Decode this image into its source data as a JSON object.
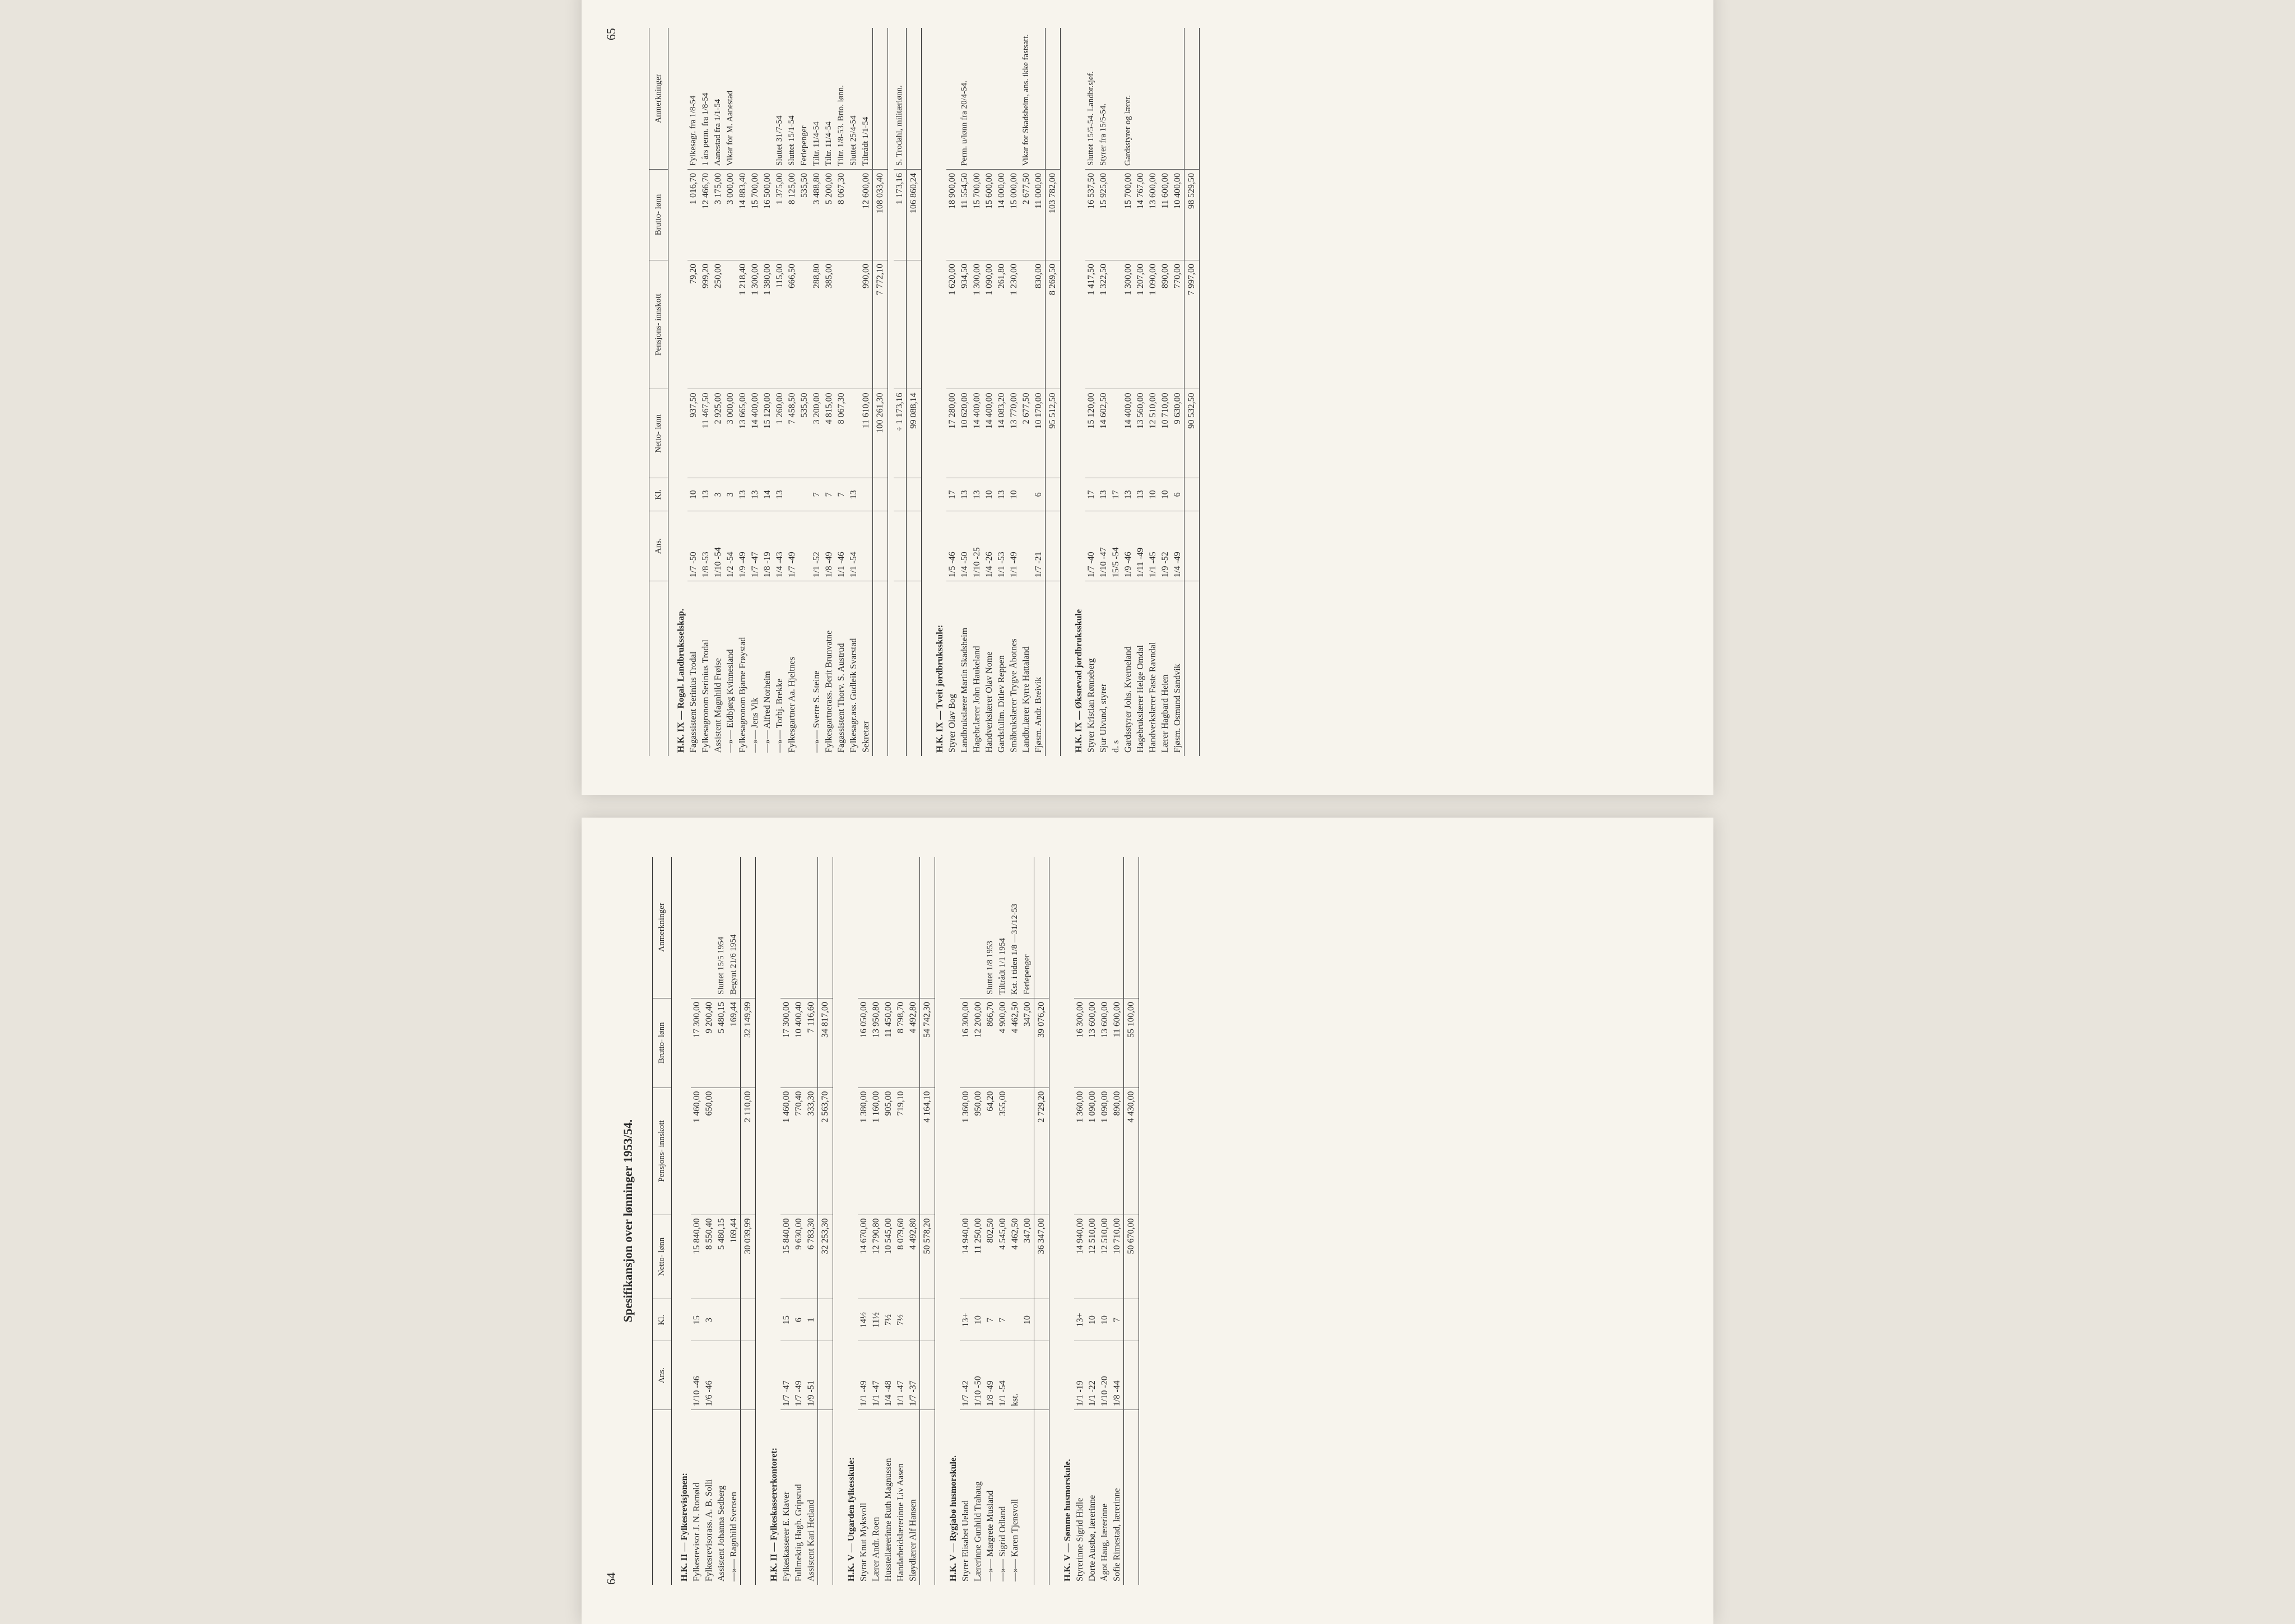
{
  "doc_title": "Spesifikansjon over lønninger 1953/54.",
  "page_left_num": "64",
  "page_right_num": "65",
  "headers": {
    "ans": "Ans.",
    "kl": "Kl.",
    "netto": "Netto-\nlønn",
    "pensjon": "Pensjons-\ninnskott",
    "brutto": "Brutto-\nlønn",
    "anm": "Anmerkninger"
  },
  "left": [
    {
      "type": "section",
      "name": "H.K. II — Fylkesrevisjonen:"
    },
    {
      "name": "Fylkesrevisor J. N. Romøld",
      "ans": "1/10 -46",
      "kl": "15",
      "netto": "15 840,00",
      "pensjon": "1 460,00",
      "brutto": "17 300,00",
      "note": ""
    },
    {
      "name": "Fylkesrevisorass. A. B. Solli",
      "ans": "1/6  -46",
      "kl": "3",
      "netto": "8 550,40",
      "pensjon": "650,00",
      "brutto": "9 200,40",
      "note": ""
    },
    {
      "name": "Assistent Johanna Sedberg",
      "ans": "",
      "kl": "",
      "netto": "5 480,15",
      "pensjon": "",
      "brutto": "5 480,15",
      "note": "Sluttet 15/5 1954"
    },
    {
      "name": "   —»—    Ragnhild Svensen",
      "ans": "",
      "kl": "",
      "netto": "169,44",
      "pensjon": "",
      "brutto": "169,44",
      "note": "Begynt 21/6 1954"
    },
    {
      "type": "total",
      "netto": "30 039,99",
      "pensjon": "2 110,00",
      "brutto": "32 149,99"
    },
    {
      "type": "section",
      "name": "H.K. II — Fylkeskassererkontoret:"
    },
    {
      "name": "Fylkeskasserer E. Klaver",
      "ans": "1/7  -47",
      "kl": "15",
      "netto": "15 840,00",
      "pensjon": "1 460,00",
      "brutto": "17 300,00",
      "note": ""
    },
    {
      "name": "Fullmektig Hagb. Gripsrud",
      "ans": "1/7  -49",
      "kl": "6",
      "netto": "9 630,00",
      "pensjon": "770,40",
      "brutto": "10 400,40",
      "note": ""
    },
    {
      "name": "Assistent Kari Hetland",
      "ans": "1/9  -51",
      "kl": "1",
      "netto": "6 783,30",
      "pensjon": "333,30",
      "brutto": "7 116,60",
      "note": ""
    },
    {
      "type": "total",
      "netto": "32 253,30",
      "pensjon": "2 563,70",
      "brutto": "34 817,00"
    },
    {
      "type": "section",
      "name": "H.K. V — Utgarden fylkesskule:"
    },
    {
      "name": "Styrar Knut Myksvoll",
      "ans": "1/1  -49",
      "kl": "14½",
      "netto": "14 670,00",
      "pensjon": "1 380,00",
      "brutto": "16 050,00",
      "note": ""
    },
    {
      "name": "Lærer Andr. Roen",
      "ans": "1/1  -47",
      "kl": "11½",
      "netto": "12 790,80",
      "pensjon": "1 160,00",
      "brutto": "13 950,80",
      "note": ""
    },
    {
      "name": "Husstellærerinne Ruth Magnussen",
      "ans": "1/4  -48",
      "kl": "7½",
      "netto": "10 545,00",
      "pensjon": "905,00",
      "brutto": "11 450,00",
      "note": ""
    },
    {
      "name": "Handarbeidslærerinne Liv Aasen",
      "ans": "1/1  -47",
      "kl": "7½",
      "netto": "8 079,60",
      "pensjon": "719,10",
      "brutto": "8 798,70",
      "note": ""
    },
    {
      "name": "Sløydlærer Alf Hansen",
      "ans": "1/7  -37",
      "kl": "",
      "netto": "4 492,80",
      "pensjon": "",
      "brutto": "4 492,80",
      "note": ""
    },
    {
      "type": "total",
      "netto": "50 578,20",
      "pensjon": "4 164,10",
      "brutto": "54 742,30"
    },
    {
      "type": "section",
      "name": "H.K. V — Rygjabø husmorskule."
    },
    {
      "name": "Styrer Elisabet Ueland",
      "ans": "1/7  -42",
      "kl": "13+",
      "netto": "14 940,00",
      "pensjon": "1 360,00",
      "brutto": "16 300,00",
      "note": ""
    },
    {
      "name": "Lærerinne Gunhild Trahaug",
      "ans": "1/10 -50",
      "kl": "10",
      "netto": "11 250,00",
      "pensjon": "950,00",
      "brutto": "12 200,00",
      "note": ""
    },
    {
      "name": "   —»—    Margrete Musland",
      "ans": "1/8  -49",
      "kl": "7",
      "netto": "802,50",
      "pensjon": "64,20",
      "brutto": "866,70",
      "note": "Sluttet 1/8 1953"
    },
    {
      "name": "   —»—    Sigrid Odland",
      "ans": "1/1  -54",
      "kl": "7",
      "netto": "4 545,00",
      "pensjon": "355,00",
      "brutto": "4 900,00",
      "note": "Tiltrådt 1/1 1954"
    },
    {
      "name": "   —»—    Karen Tjensvoll",
      "ans": "kst.",
      "kl": "",
      "netto": "4 462,50",
      "pensjon": "",
      "brutto": "4 462,50",
      "note": "Kst. i tiden 1/8 —31/12-53"
    },
    {
      "name": "",
      "ans": "",
      "kl": "10",
      "netto": "347,00",
      "pensjon": "",
      "brutto": "347,00",
      "note": "Feriepenger"
    },
    {
      "type": "total",
      "netto": "36 347,00",
      "pensjon": "2 729,20",
      "brutto": "39 076,20"
    },
    {
      "type": "section",
      "name": "H.K. V — Sømme husmorskule."
    },
    {
      "name": "Styrerinne Sigrid Hidle",
      "ans": "1/1  -19",
      "kl": "13+",
      "netto": "14 940,00",
      "pensjon": "1 360,00",
      "brutto": "16 300,00",
      "note": ""
    },
    {
      "name": "Dorte Austbø, lærerinne",
      "ans": "1/1  -22",
      "kl": "10",
      "netto": "12 510,00",
      "pensjon": "1 090,00",
      "brutto": "13 600,00",
      "note": ""
    },
    {
      "name": "Ågot Haug, lærerinne",
      "ans": "1/10 -20",
      "kl": "10",
      "netto": "12 510,00",
      "pensjon": "1 090,00",
      "brutto": "13 600,00",
      "note": ""
    },
    {
      "name": "Sofie Rimestad, lærerinne",
      "ans": "1/8  -44",
      "kl": "7",
      "netto": "10 710,00",
      "pensjon": "890,00",
      "brutto": "11 600,00",
      "note": ""
    },
    {
      "type": "total",
      "netto": "50 670,00",
      "pensjon": "4 430,00",
      "brutto": "55 100,00"
    }
  ],
  "right": [
    {
      "type": "section",
      "name": "H.K. IX — Rogal. Landbruksselskap."
    },
    {
      "name": "Fagassistent Serinius Trodal",
      "ans": "1/7  -50",
      "kl": "10",
      "netto": "937,50",
      "pensjon": "79,20",
      "brutto": "1 016,70",
      "note": "Fylkesagr. fra 1/8-54"
    },
    {
      "name": "Fylkesagronom Serinius Trodal",
      "ans": "1/8  -53",
      "kl": "13",
      "netto": "11 467,50",
      "pensjon": "999,20",
      "brutto": "12 466,70",
      "note": "1 års perm. fra 1/8-54"
    },
    {
      "name": "Assistent Magnhild Frøise",
      "ans": "1/10 -54",
      "kl": "3",
      "netto": "2 925,00",
      "pensjon": "250,00",
      "brutto": "3 175,00",
      "note": "Aanestad fra 1/1-54"
    },
    {
      "name": "   —»—    Eldbjørg Kvinnesland",
      "ans": "1/2  -54",
      "kl": "3",
      "netto": "3 000,00",
      "pensjon": "",
      "brutto": "3 000,00",
      "note": "Vikar for M. Aanestad"
    },
    {
      "name": "Fylkesagronom Bjarne Frøystad",
      "ans": "1/9  -49",
      "kl": "13",
      "netto": "13 665,00",
      "pensjon": "1 218,40",
      "brutto": "14 883,40",
      "note": ""
    },
    {
      "name": "   —»—    Jens Vik",
      "ans": "1/7  -47",
      "kl": "13",
      "netto": "14 400,00",
      "pensjon": "1 300,00",
      "brutto": "15 700,00",
      "note": ""
    },
    {
      "name": "   —»—    Alfred Norheim",
      "ans": "1/8  -19",
      "kl": "14",
      "netto": "15 120,00",
      "pensjon": "1 380,00",
      "brutto": "16 500,00",
      "note": ""
    },
    {
      "name": "   —»—    Torbj. Brekke",
      "ans": "1/4  -43",
      "kl": "13",
      "netto": "1 260,00",
      "pensjon": "115,00",
      "brutto": "1 375,00",
      "note": "Sluttet 31/7-54"
    },
    {
      "name": "Fylkesgartner Aa. Hjeltnes",
      "ans": "1/7  -49",
      "kl": "",
      "netto": "7 458,50",
      "pensjon": "666,50",
      "brutto": "8 125,00",
      "note": "Sluttet 15/1-54"
    },
    {
      "name": "",
      "ans": "",
      "kl": "",
      "netto": "535,50",
      "pensjon": "",
      "brutto": "535,50",
      "note": "Feriepenger"
    },
    {
      "name": "   —»—    Sverre S. Steine",
      "ans": "1/1  -52",
      "kl": "7",
      "netto": "3 200,00",
      "pensjon": "288,80",
      "brutto": "3 488,80",
      "note": "Tiltr. 11/4-54"
    },
    {
      "name": "Fylkesgartnerass. Berit Brunvatne",
      "ans": "1/8  -49",
      "kl": "7",
      "netto": "4 815,00",
      "pensjon": "385,00",
      "brutto": "5 200,00",
      "note": "Tiltr. 11/4-54"
    },
    {
      "name": "Fagassistent Thorv. S. Austrud",
      "ans": "1/1  -46",
      "kl": "7",
      "netto": "8 067,30",
      "pensjon": "",
      "brutto": "8 067,30",
      "note": "Tiltr. 1/8-53. Brto. lønn."
    },
    {
      "name": "Fylkesagr.ass. Gudleik Svarstad",
      "ans": "1/1  -54",
      "kl": "13",
      "netto": "",
      "pensjon": "",
      "brutto": "",
      "note": "Sluttet 25/4-54"
    },
    {
      "name": "Sekretær",
      "ans": "",
      "kl": "",
      "netto": "11 610,00",
      "pensjon": "990,00",
      "brutto": "12 600,00",
      "note": "Tiltrådt 1/1-54"
    },
    {
      "type": "total",
      "netto": "100 261,30",
      "pensjon": "7 772,10",
      "brutto": "108 033,40"
    },
    {
      "name": "",
      "ans": "",
      "kl": "",
      "netto": "÷ 1 173,16",
      "pensjon": "",
      "brutto": "1 173,16",
      "note": "S. Trodahl, militærlønn."
    },
    {
      "type": "total",
      "netto": "99 088,14",
      "pensjon": "",
      "brutto": "106 860,24"
    },
    {
      "type": "section",
      "name": "H.K. IX — Tveit jordbruksskule:"
    },
    {
      "name": "Styrer Olav Bog",
      "ans": "1/5  -46",
      "kl": "17",
      "netto": "17 280,00",
      "pensjon": "1 620,00",
      "brutto": "18 900,00",
      "note": ""
    },
    {
      "name": "Landbrukslærer Martin Skadsheim",
      "ans": "1/4  -50",
      "kl": "13",
      "netto": "10 620,00",
      "pensjon": "934,50",
      "brutto": "11 554,50",
      "note": "Perm. u/lønn fra 20/4-54."
    },
    {
      "name": "Hagebr.lærer John Haukeland",
      "ans": "1/10 -25",
      "kl": "13",
      "netto": "14 400,00",
      "pensjon": "1 300,00",
      "brutto": "15 700,00",
      "note": ""
    },
    {
      "name": "Handverkslærer Olav Nome",
      "ans": "1/4  -26",
      "kl": "10",
      "netto": "14 400,00",
      "pensjon": "1 090,00",
      "brutto": "15 600,00",
      "note": ""
    },
    {
      "name": "Gardsfullm. Ditlev Reppen",
      "ans": "1/1  -53",
      "kl": "13",
      "netto": "14 083,20",
      "pensjon": "261,80",
      "brutto": "14 000,00",
      "note": ""
    },
    {
      "name": "Småbrukslærer Trygve Åbotnes",
      "ans": "1/1  -49",
      "kl": "10",
      "netto": "13 770,00",
      "pensjon": "1 230,00",
      "brutto": "15 000,00",
      "note": ""
    },
    {
      "name": "Landbr.lærer Kyrre Hattaland",
      "ans": "",
      "kl": "",
      "netto": "2 677,50",
      "pensjon": "",
      "brutto": "2 677,50",
      "note": "Vikar for Skadsheim, ans. ikke fastsatt."
    },
    {
      "name": "Fjøsm. Andr. Breivik",
      "ans": "1/7  -21",
      "kl": "6",
      "netto": "10 170,00",
      "pensjon": "830,00",
      "brutto": "11 000,00",
      "note": ""
    },
    {
      "type": "total",
      "netto": "95 512,50",
      "pensjon": "8 269,50",
      "brutto": "103 782,00"
    },
    {
      "type": "section",
      "name": "H.K. IX — Øksnevad jordbruksskule"
    },
    {
      "name": "Styrer Kristian Rønneberg",
      "ans": "1/7  -40",
      "kl": "17",
      "netto": "15 120,00",
      "pensjon": "1 417,50",
      "brutto": "16 537,50",
      "note": "Sluttet 15/5-54. Landbr.sjef."
    },
    {
      "name": "Sjur Ulvund, styrer",
      "ans": "1/10 -47",
      "kl": "13",
      "netto": "14 602,50",
      "pensjon": "1 322,50",
      "brutto": "15 925,00",
      "note": "Styrer fra 15/5-54."
    },
    {
      "name": "    d. s",
      "ans": "15/5 -54",
      "kl": "17",
      "netto": "",
      "pensjon": "",
      "brutto": "",
      "note": ""
    },
    {
      "name": "Gardsstyrer Johs. Kverneland",
      "ans": "1/9  -46",
      "kl": "13",
      "netto": "14 400,00",
      "pensjon": "1 300,00",
      "brutto": "15 700,00",
      "note": "Gardsstyrer og lærer."
    },
    {
      "name": "Hagebrukslærer Helge Omdal",
      "ans": "1/11 -49",
      "kl": "13",
      "netto": "13 560,00",
      "pensjon": "1 207,00",
      "brutto": "14 767,00",
      "note": ""
    },
    {
      "name": "Handverkslærer Faste Ravndal",
      "ans": "1/1  -45",
      "kl": "10",
      "netto": "12 510,00",
      "pensjon": "1 090,00",
      "brutto": "13 600,00",
      "note": ""
    },
    {
      "name": "Lærer Hagbard Heien",
      "ans": "1/9  -52",
      "kl": "10",
      "netto": "10 710,00",
      "pensjon": "890,00",
      "brutto": "11 600,00",
      "note": ""
    },
    {
      "name": "Fjøsm. Osmund Sandvik",
      "ans": "1/4  -49",
      "kl": "6",
      "netto": "9 630,00",
      "pensjon": "770,00",
      "brutto": "10 400,00",
      "note": ""
    },
    {
      "type": "total",
      "netto": "90 532,50",
      "pensjon": "7 997,00",
      "brutto": "98 529,50"
    }
  ]
}
